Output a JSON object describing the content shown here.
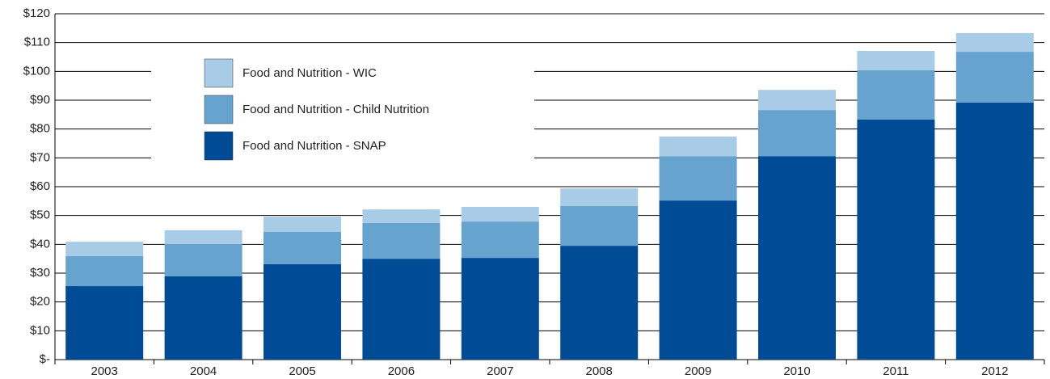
{
  "chart_data": {
    "type": "stacked_bar",
    "categories": [
      "2003",
      "2004",
      "2005",
      "2006",
      "2007",
      "2008",
      "2009",
      "2010",
      "2011",
      "2012"
    ],
    "series": [
      {
        "name": "Food and Nutrition - SNAP",
        "color": "#004b96",
        "values": [
          25.5,
          28.9,
          33.1,
          35.0,
          35.3,
          39.5,
          55.2,
          70.6,
          83.3,
          89.2
        ]
      },
      {
        "name": "Food and Nutrition - Child Nutrition",
        "color": "#66a3cf",
        "values": [
          10.4,
          11.2,
          11.2,
          12.4,
          12.6,
          13.8,
          15.4,
          16.0,
          17.1,
          17.6
        ]
      },
      {
        "name": "Food and Nutrition - WIC",
        "color": "#a9cce6",
        "values": [
          5.0,
          4.8,
          5.3,
          4.7,
          5.1,
          6.1,
          6.8,
          7.0,
          6.7,
          6.5
        ]
      }
    ],
    "ylim": [
      0,
      120
    ],
    "yticks": [
      {
        "value": 0,
        "label": "$-"
      },
      {
        "value": 10,
        "label": "$10"
      },
      {
        "value": 20,
        "label": "$20"
      },
      {
        "value": 30,
        "label": "$30"
      },
      {
        "value": 40,
        "label": "$40"
      },
      {
        "value": 50,
        "label": "$50"
      },
      {
        "value": 60,
        "label": "$60"
      },
      {
        "value": 70,
        "label": "$70"
      },
      {
        "value": 80,
        "label": "$80"
      },
      {
        "value": 90,
        "label": "$90"
      },
      {
        "value": 100,
        "label": "$100"
      },
      {
        "value": 110,
        "label": "$110"
      },
      {
        "value": 120,
        "label": "$120"
      }
    ],
    "grid": true,
    "legend": "upper left"
  }
}
